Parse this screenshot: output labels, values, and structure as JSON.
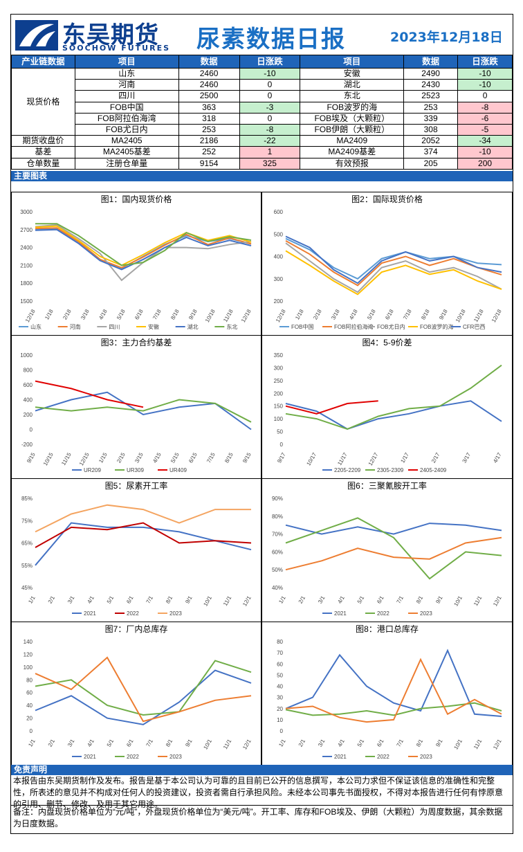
{
  "header": {
    "logo_cn": "东吴期货",
    "logo_en": "SOOCHOW FUTURES",
    "title": "尿素数据日报",
    "date": "2023年12月18日",
    "brand_color": "#1f64b8"
  },
  "table": {
    "headers": [
      "产业链数据",
      "项目",
      "数据",
      "日涨跌",
      "项目",
      "数据",
      "日涨跌"
    ],
    "spot_label": "现货价格",
    "spot_rows": [
      {
        "a": "山东",
        "av": "2460",
        "ac": "-10",
        "acc": "g",
        "b": "安徽",
        "bv": "2490",
        "bc": "-10",
        "bcc": "g"
      },
      {
        "a": "河南",
        "av": "2460",
        "ac": "0",
        "acc": "",
        "b": "湖北",
        "bv": "2430",
        "bc": "-10",
        "bcc": "g"
      },
      {
        "a": "四川",
        "av": "2500",
        "ac": "0",
        "acc": "",
        "b": "东北",
        "bv": "2523",
        "bc": "0",
        "bcc": ""
      },
      {
        "a": "FOB中国",
        "av": "363",
        "ac": "-3",
        "acc": "g",
        "b": "FOB波罗的海",
        "bv": "253",
        "bc": "-8",
        "bcc": "r"
      },
      {
        "a": "FOB阿拉伯海湾",
        "av": "318",
        "ac": "0",
        "acc": "",
        "b": "FOB埃及（大颗粒）",
        "bv": "339",
        "bc": "-6",
        "bcc": "r"
      },
      {
        "a": "FOB尤日内",
        "av": "253",
        "ac": "-8",
        "acc": "g",
        "b": "FOB伊朗（大颗粒）",
        "bv": "308",
        "bc": "-5",
        "bcc": "r"
      }
    ],
    "other_rows": [
      {
        "label": "期货收盘价",
        "a": "MA2405",
        "av": "2186",
        "ac": "-22",
        "acc": "g",
        "b": "MA2409",
        "bv": "2052",
        "bc": "-34",
        "bcc": "g"
      },
      {
        "label": "基差",
        "a": "MA2405基差",
        "av": "252",
        "ac": "1",
        "acc": "r",
        "b": "MA2409基差",
        "bv": "374",
        "bc": "-10",
        "bcc": "r"
      },
      {
        "label": "仓单数量",
        "a": "注册仓单量",
        "av": "9154",
        "ac": "325",
        "acc": "r",
        "b": "有效预报",
        "bv": "205",
        "bc": "200",
        "bcc": "r"
      }
    ]
  },
  "section_charts": "主要图表",
  "charts": [
    {
      "title": "图1：国内现货价格",
      "type": "line",
      "yticks": [
        "3000",
        "2700",
        "2400",
        "2100",
        "1800",
        "1500"
      ],
      "xticks": [
        "12/18",
        "1/18",
        "2/18",
        "3/18",
        "4/18",
        "5/18",
        "6/18",
        "7/18",
        "8/18",
        "9/18",
        "10/18",
        "11/18",
        "12/18"
      ],
      "series": [
        {
          "name": "山东",
          "color": "#5b9bd5"
        },
        {
          "name": "河南",
          "color": "#ed7d31"
        },
        {
          "name": "四川",
          "color": "#a5a5a5"
        },
        {
          "name": "安徽",
          "color": "#ffc000"
        },
        {
          "name": "湖北",
          "color": "#4472c4"
        },
        {
          "name": "东北",
          "color": "#70ad47"
        }
      ]
    },
    {
      "title": "图2：国际现货价格",
      "type": "line",
      "yticks": [
        "600",
        "500",
        "400",
        "300",
        "200"
      ],
      "xticks": [
        "12/18",
        "1/18",
        "2/18",
        "3/18",
        "4/18",
        "5/18",
        "6/18",
        "7/18",
        "8/18",
        "9/18",
        "10/18",
        "11/18",
        "12/18"
      ],
      "series": [
        {
          "name": "FOB中国",
          "color": "#5b9bd5"
        },
        {
          "name": "FOB阿拉伯海湾",
          "color": "#ed7d31"
        },
        {
          "name": "FOB尤日内",
          "color": "#a5a5a5"
        },
        {
          "name": "FOB波罗的海",
          "color": "#ffc000"
        },
        {
          "name": "CFR巴西",
          "color": "#4472c4"
        }
      ]
    },
    {
      "title": "图3：主力合约基差",
      "type": "line",
      "yticks": [
        "1000",
        "800",
        "600",
        "400",
        "200",
        "0",
        "-200"
      ],
      "xticks": [
        "9/15",
        "10/15",
        "11/15",
        "12/15",
        "1/15",
        "2/15",
        "3/15",
        "4/15",
        "5/15",
        "6/15",
        "7/15",
        "8/15",
        "9/15"
      ],
      "series": [
        {
          "name": "UR209",
          "color": "#4472c4"
        },
        {
          "name": "UR309",
          "color": "#70ad47"
        },
        {
          "name": "UR409",
          "color": "#e00000"
        }
      ]
    },
    {
      "title": "图4：5-9价差",
      "type": "line",
      "yticks": [
        "350",
        "300",
        "250",
        "200",
        "150",
        "100",
        "50",
        "0"
      ],
      "xticks": [
        "9/17",
        "10/17",
        "11/17",
        "12/17",
        "1/17",
        "2/17",
        "3/17",
        "4/17"
      ],
      "series": [
        {
          "name": "2205-2209",
          "color": "#4472c4"
        },
        {
          "name": "2305-2309",
          "color": "#70ad47"
        },
        {
          "name": "2405-2409",
          "color": "#e00000"
        }
      ]
    },
    {
      "title": "图5：尿素开工率",
      "type": "line",
      "yticks": [
        "85%",
        "75%",
        "65%",
        "55%",
        "45%"
      ],
      "xticks": [
        "1/1",
        "2/1",
        "3/1",
        "4/1",
        "5/1",
        "6/1",
        "7/1",
        "8/1",
        "9/1",
        "10/1",
        "11/1",
        "12/1"
      ],
      "series": [
        {
          "name": "2021",
          "color": "#4472c4"
        },
        {
          "name": "2022",
          "color": "#c00000"
        },
        {
          "name": "2023",
          "color": "#f4a460"
        }
      ]
    },
    {
      "title": "图6：三聚氰胺开工率",
      "type": "line",
      "yticks": [
        "90%",
        "80%",
        "70%",
        "60%",
        "50%",
        "40%"
      ],
      "xticks": [
        "1/1",
        "2/1",
        "3/1",
        "4/1",
        "5/1",
        "6/1",
        "7/1",
        "8/1",
        "9/1",
        "10/1",
        "11/1",
        "12/1"
      ],
      "series": [
        {
          "name": "2021",
          "color": "#4472c4"
        },
        {
          "name": "2022",
          "color": "#70ad47"
        },
        {
          "name": "2023",
          "color": "#ed7d31"
        }
      ]
    },
    {
      "title": "图7：厂内总库存",
      "type": "line",
      "yticks": [
        "140",
        "120",
        "100",
        "80",
        "60",
        "40",
        "20",
        "0"
      ],
      "xticks": [
        "1/1",
        "2/1",
        "3/1",
        "4/1",
        "5/1",
        "6/1",
        "7/1",
        "8/1",
        "9/1",
        "10/1",
        "11/1",
        "12/1"
      ],
      "series": [
        {
          "name": "2021",
          "color": "#4472c4"
        },
        {
          "name": "2022",
          "color": "#70ad47"
        },
        {
          "name": "2023",
          "color": "#ed7d31"
        }
      ]
    },
    {
      "title": "图8：港口总库存",
      "type": "line",
      "yticks": [
        "80",
        "70",
        "60",
        "50",
        "40",
        "30",
        "20",
        "10",
        "0"
      ],
      "xticks": [
        "1/1",
        "2/1",
        "3/1",
        "4/1",
        "5/1",
        "6/1",
        "7/1",
        "8/1",
        "9/1",
        "10/1",
        "11/1",
        "12/1"
      ],
      "series": [
        {
          "name": "2021",
          "color": "#4472c4"
        },
        {
          "name": "2022",
          "color": "#70ad47"
        },
        {
          "name": "2023",
          "color": "#ed7d31"
        }
      ]
    }
  ],
  "chart_data": [
    {
      "type": "line",
      "title": "图1：国内现货价格",
      "ylim": [
        1500,
        3000
      ],
      "x": [
        "12/18",
        "2/18",
        "4/18",
        "5/18",
        "6/18",
        "7/18",
        "8/18",
        "9/18",
        "10/18",
        "11/18",
        "12/18"
      ],
      "series": [
        {
          "name": "山东",
          "values": [
            2700,
            2720,
            2500,
            2200,
            2050,
            2250,
            2450,
            2600,
            2500,
            2550,
            2460
          ]
        },
        {
          "name": "河南",
          "values": [
            2720,
            2730,
            2500,
            2200,
            2060,
            2240,
            2440,
            2620,
            2450,
            2560,
            2460
          ]
        },
        {
          "name": "四川",
          "values": [
            2750,
            2780,
            2550,
            2300,
            1850,
            2150,
            2400,
            2400,
            2380,
            2450,
            2500
          ]
        },
        {
          "name": "安徽",
          "values": [
            2740,
            2760,
            2520,
            2250,
            2100,
            2280,
            2480,
            2650,
            2520,
            2600,
            2490
          ]
        },
        {
          "name": "湖北",
          "values": [
            2690,
            2700,
            2470,
            2180,
            2030,
            2200,
            2400,
            2570,
            2430,
            2520,
            2430
          ]
        },
        {
          "name": "东北",
          "values": [
            2800,
            2800,
            2600,
            2350,
            2100,
            2150,
            2350,
            2650,
            2500,
            2580,
            2523
          ]
        }
      ]
    },
    {
      "type": "line",
      "title": "图2：国际现货价格",
      "ylim": [
        200,
        600
      ],
      "x": [
        "12/18",
        "2/18",
        "4/18",
        "6/18",
        "7/18",
        "8/18",
        "9/18",
        "10/18",
        "11/18",
        "12/18"
      ],
      "series": [
        {
          "name": "FOB中国",
          "values": [
            480,
            430,
            350,
            300,
            390,
            420,
            390,
            400,
            370,
            363
          ]
        },
        {
          "name": "FOB阿拉伯海湾",
          "values": [
            470,
            410,
            330,
            270,
            370,
            400,
            360,
            390,
            350,
            318
          ]
        },
        {
          "name": "FOB尤日内",
          "values": [
            460,
            380,
            300,
            240,
            350,
            380,
            330,
            350,
            310,
            253
          ]
        },
        {
          "name": "FOB波罗的海",
          "values": [
            425,
            360,
            290,
            230,
            330,
            360,
            320,
            340,
            290,
            253
          ]
        },
        {
          "name": "CFR巴西",
          "values": [
            490,
            440,
            340,
            280,
            380,
            420,
            380,
            400,
            350,
            330
          ]
        }
      ]
    },
    {
      "type": "line",
      "title": "图3：主力合约基差",
      "ylim": [
        -200,
        1000
      ],
      "x": [
        "9/15",
        "10/15",
        "11/15",
        "12/15",
        "3/15",
        "6/15",
        "9/15"
      ],
      "series": [
        {
          "name": "UR209",
          "values": [
            250,
            400,
            500,
            200,
            300,
            350,
            0
          ]
        },
        {
          "name": "UR309",
          "values": [
            300,
            250,
            300,
            250,
            400,
            350,
            100
          ]
        },
        {
          "name": "UR409",
          "values": [
            650,
            550,
            400,
            300,
            null,
            null,
            null
          ]
        }
      ]
    },
    {
      "type": "line",
      "title": "图4：5-9价差",
      "ylim": [
        0,
        350
      ],
      "x": [
        "9/17",
        "10/17",
        "11/17",
        "12/17",
        "1/17",
        "2/17",
        "3/17",
        "4/17"
      ],
      "series": [
        {
          "name": "2205-2209",
          "values": [
            160,
            130,
            60,
            100,
            120,
            150,
            170,
            90
          ]
        },
        {
          "name": "2305-2309",
          "values": [
            120,
            100,
            60,
            110,
            140,
            150,
            220,
            310
          ]
        },
        {
          "name": "2405-2409",
          "values": [
            150,
            120,
            160,
            170,
            null,
            null,
            null,
            null
          ]
        }
      ]
    },
    {
      "type": "line",
      "title": "图5：尿素开工率",
      "ylim": [
        45,
        85
      ],
      "x": [
        "1/1",
        "3/1",
        "5/1",
        "7/1",
        "9/1",
        "11/1",
        "12/1"
      ],
      "series": [
        {
          "name": "2021",
          "values": [
            55,
            74,
            72,
            72,
            70,
            66,
            62
          ]
        },
        {
          "name": "2022",
          "values": [
            63,
            72,
            71,
            74,
            65,
            66,
            65
          ]
        },
        {
          "name": "2023",
          "values": [
            70,
            78,
            82,
            80,
            74,
            80,
            80
          ]
        }
      ]
    },
    {
      "type": "line",
      "title": "图6：三聚氰胺开工率",
      "ylim": [
        40,
        90
      ],
      "x": [
        "1/1",
        "3/1",
        "5/1",
        "7/1",
        "9/1",
        "11/1",
        "12/1"
      ],
      "series": [
        {
          "name": "2021",
          "values": [
            75,
            70,
            74,
            70,
            76,
            75,
            72
          ]
        },
        {
          "name": "2022",
          "values": [
            65,
            72,
            79,
            68,
            45,
            60,
            58
          ]
        },
        {
          "name": "2023",
          "values": [
            50,
            55,
            62,
            57,
            56,
            65,
            68
          ]
        }
      ]
    },
    {
      "type": "line",
      "title": "图7：厂内总库存",
      "ylim": [
        0,
        140
      ],
      "x": [
        "1/1",
        "3/1",
        "5/1",
        "7/1",
        "9/1",
        "11/1",
        "12/1"
      ],
      "series": [
        {
          "name": "2021",
          "values": [
            32,
            55,
            20,
            10,
            45,
            95,
            75
          ]
        },
        {
          "name": "2022",
          "values": [
            70,
            80,
            40,
            25,
            30,
            110,
            92
          ]
        },
        {
          "name": "2023",
          "values": [
            90,
            65,
            115,
            15,
            30,
            48,
            55
          ]
        }
      ]
    },
    {
      "type": "line",
      "title": "图8：港口总库存",
      "ylim": [
        0,
        80
      ],
      "x": [
        "1/1",
        "3/1",
        "4/1",
        "5/1",
        "7/1",
        "9/1",
        "10/1",
        "11/1",
        "12/1"
      ],
      "series": [
        {
          "name": "2021",
          "values": [
            20,
            30,
            68,
            40,
            25,
            18,
            72,
            15,
            13
          ]
        },
        {
          "name": "2022",
          "values": [
            19,
            14,
            15,
            18,
            14,
            20,
            22,
            25,
            18
          ]
        },
        {
          "name": "2023",
          "values": [
            20,
            22,
            12,
            8,
            10,
            64,
            15,
            28,
            15
          ]
        }
      ]
    }
  ],
  "section_disclaimer": "免责声明",
  "disclaimer": "本报告由东吴期货制作及发布。报告是基于本公司认为可靠的且目前已公开的信息撰写，本公司力求但不保证该信息的准确性和完整性，所表述的意见并不构成对任何人的投资建议，投资者需自行承担风险。未经本公司事先书面授权，不得对本报告进行任何有悖原意的引用、删节、修改、及用于其它用途。",
  "note": "备注：内盘现货价格单位为“元/吨”，外盘现货价格单位为“美元/吨”。开工率、库存和FOB埃及、伊朗（大颗粒）为周度数据，其余数据为日度数据。"
}
